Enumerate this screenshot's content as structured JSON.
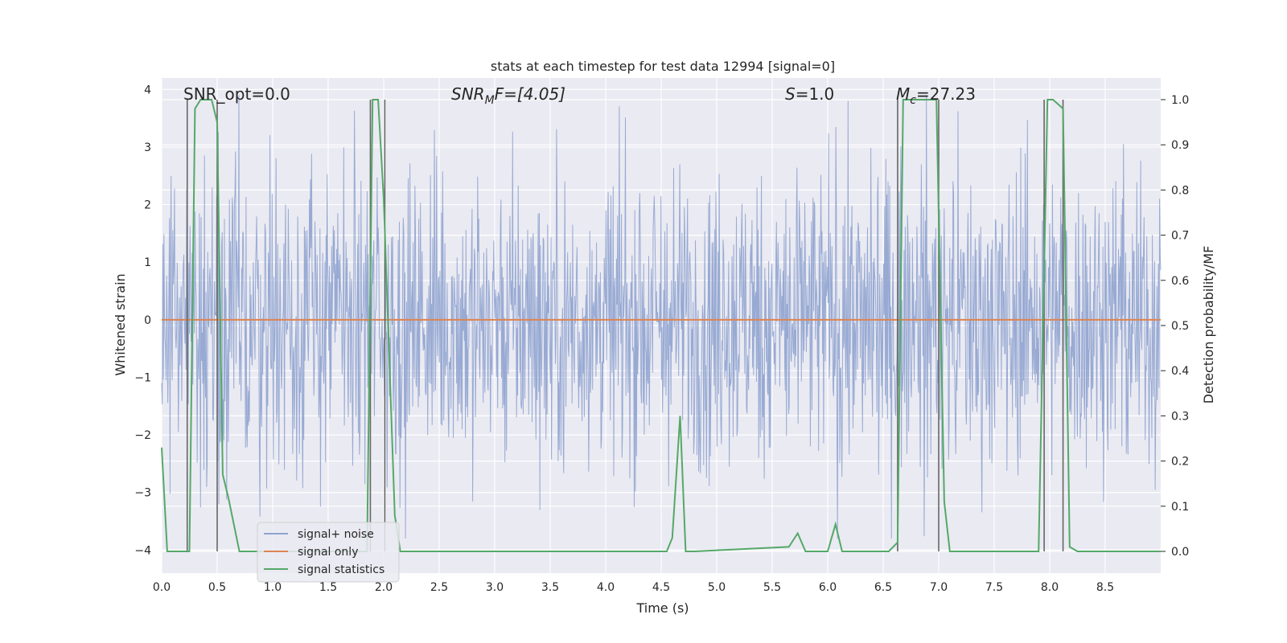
{
  "chart_data": {
    "type": "line",
    "title": "stats at each timestep for test data 12994 [signal=0]",
    "xlabel": "Time (s)",
    "ylabel_left": "Whitened strain",
    "ylabel_right": "Detection probability/MF",
    "xlim": [
      0.0,
      9.0
    ],
    "ylim_left": [
      -4.4,
      4.2
    ],
    "ylim_right": [
      -0.048,
      1.048
    ],
    "x_ticks": [
      0.0,
      0.5,
      1.0,
      1.5,
      2.0,
      2.5,
      3.0,
      3.5,
      4.0,
      4.5,
      5.0,
      5.5,
      6.0,
      6.5,
      7.0,
      7.5,
      8.0,
      8.5
    ],
    "x_tick_labels": [
      "0.0",
      "0.5",
      "1.0",
      "1.5",
      "2.0",
      "2.5",
      "3.0",
      "3.5",
      "4.0",
      "4.5",
      "5.0",
      "5.5",
      "6.0",
      "6.5",
      "7.0",
      "7.5",
      "8.0",
      "8.5"
    ],
    "y_left_ticks": [
      -4,
      -3,
      -2,
      -1,
      0,
      1,
      2,
      3,
      4
    ],
    "y_left_tick_labels": [
      "−4",
      "−3",
      "−2",
      "−1",
      "0",
      "1",
      "2",
      "3",
      "4"
    ],
    "y_right_ticks": [
      0.0,
      0.1,
      0.2,
      0.3,
      0.4,
      0.5,
      0.6,
      0.7,
      0.8,
      0.9,
      1.0
    ],
    "y_right_tick_labels": [
      "0.0",
      "0.1",
      "0.2",
      "0.3",
      "0.4",
      "0.5",
      "0.6",
      "0.7",
      "0.8",
      "0.9",
      "1.0"
    ],
    "annotations": {
      "snr_opt": "SNR_opt=0.0",
      "snr_mf_main": "SNR",
      "snr_mf_sub": "M",
      "snr_mf_rest": "F=[4.05]",
      "s_var": "S",
      "s_rest": "=1.0",
      "mc_var": "M",
      "mc_sub": "c",
      "mc_rest": "=27.23"
    },
    "series": [
      {
        "name": "signal+ noise",
        "color": "#8fa3cf",
        "generated": true,
        "n_samples": 1800,
        "envelope": "approx. uniform noise, peaks between -3.8 and 3.9"
      },
      {
        "name": "signal only",
        "color": "#dd8452",
        "x": [
          0.0,
          9.0
        ],
        "y": [
          0.0,
          0.0
        ]
      },
      {
        "name": "signal statistics",
        "color": "#55a868",
        "x": [
          0.0,
          0.05,
          0.25,
          0.3,
          0.35,
          0.45,
          0.5,
          0.55,
          0.6,
          0.7,
          1.85,
          1.9,
          1.95,
          2.0,
          2.1,
          2.15,
          2.2,
          4.55,
          4.6,
          4.67,
          4.72,
          4.8,
          5.65,
          5.73,
          5.8,
          6.0,
          6.07,
          6.13,
          6.55,
          6.63,
          6.68,
          6.75,
          6.98,
          7.05,
          7.1,
          7.8,
          7.9,
          7.98,
          8.03,
          8.12,
          8.18,
          8.25,
          9.0
        ],
        "y": [
          0.23,
          0.0,
          0.0,
          0.98,
          1.0,
          1.0,
          0.95,
          0.17,
          0.12,
          0.0,
          0.0,
          1.0,
          1.0,
          0.78,
          0.08,
          0.0,
          0.0,
          0.0,
          0.03,
          0.3,
          0.0,
          0.0,
          0.01,
          0.04,
          0.0,
          0.0,
          0.06,
          0.0,
          0.0,
          0.02,
          1.0,
          1.0,
          1.0,
          0.11,
          0.0,
          0.0,
          0.0,
          1.0,
          1.0,
          0.98,
          0.01,
          0.0,
          0.0
        ]
      }
    ],
    "vertical_markers": {
      "color": "#666666",
      "pairs": [
        {
          "start": 0.23,
          "end": 0.5
        },
        {
          "start": 1.88,
          "end": 2.01
        },
        {
          "start": 6.63,
          "end": 7.0
        },
        {
          "start": 7.95,
          "end": 8.12
        }
      ]
    },
    "legend": {
      "placement": "bottom-left",
      "entries": [
        "signal+ noise",
        "signal only",
        "signal statistics"
      ]
    },
    "grid": true,
    "background": "#eaeaf2"
  }
}
